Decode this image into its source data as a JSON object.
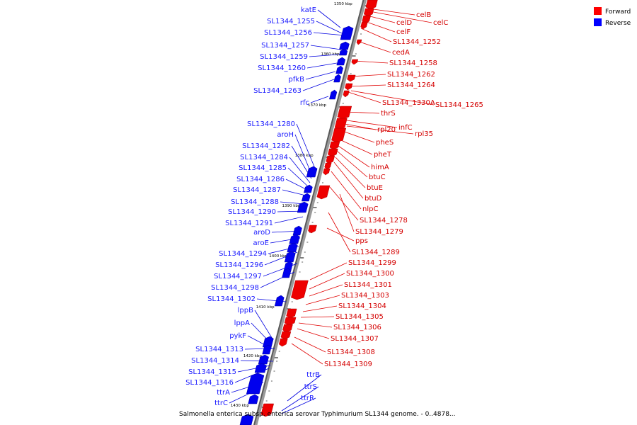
{
  "legend": [
    {
      "label": "Forward",
      "color": "#ff0000"
    },
    {
      "label": "Reverse",
      "color": "#0000ff"
    }
  ],
  "caption": "Salmonella enterica subsp. enterica serovar Typhimurium SL1344 genome. - 0..4878...",
  "ticks": [
    "1350 kbp",
    "1360 kbp",
    "1370 kbp",
    "1380 kbp",
    "1390 kbp",
    "1400 kbp",
    "1410 kbp",
    "1420 kbp",
    "1430 kbp"
  ],
  "forward_labels": [
    "celB",
    "celC",
    "celD",
    "celF",
    "SL1344_1252",
    "cedA",
    "SL1344_1258",
    "SL1344_1262",
    "SL1344_1264",
    "SL1344_1330A",
    "SL1344_1265",
    "thrS",
    "infC",
    "rpl20",
    "rpl35",
    "pheS",
    "pheT",
    "himA",
    "btuC",
    "btuE",
    "btuD",
    "nlpC",
    "SL1344_1278",
    "SL1344_1279",
    "pps",
    "SL1344_1289",
    "SL1344_1299",
    "SL1344_1300",
    "SL1344_1301",
    "SL1344_1303",
    "SL1344_1304",
    "SL1344_1305",
    "SL1344_1306",
    "SL1344_1307",
    "SL1344_1308",
    "SL1344_1309"
  ],
  "reverse_labels": [
    "katE",
    "SL1344_1255",
    "SL1344_1256",
    "SL1344_1257",
    "SL1344_1259",
    "SL1344_1260",
    "pfkB",
    "SL1344_1263",
    "rfc",
    "SL1344_1280",
    "aroH",
    "SL1344_1282",
    "SL1344_1284",
    "SL1344_1285",
    "SL1344_1286",
    "SL1344_1287",
    "SL1344_1288",
    "SL1344_1290",
    "SL1344_1291",
    "aroD",
    "aroE",
    "SL1344_1294",
    "SL1344_1296",
    "SL1344_1297",
    "SL1344_1298",
    "SL1344_1302",
    "lppB",
    "lppA",
    "pykF",
    "SL1344_1313",
    "SL1344_1314",
    "SL1344_1315",
    "SL1344_1316",
    "ttrA",
    "ttrC",
    "ttrB",
    "ttrS",
    "ttrR"
  ]
}
